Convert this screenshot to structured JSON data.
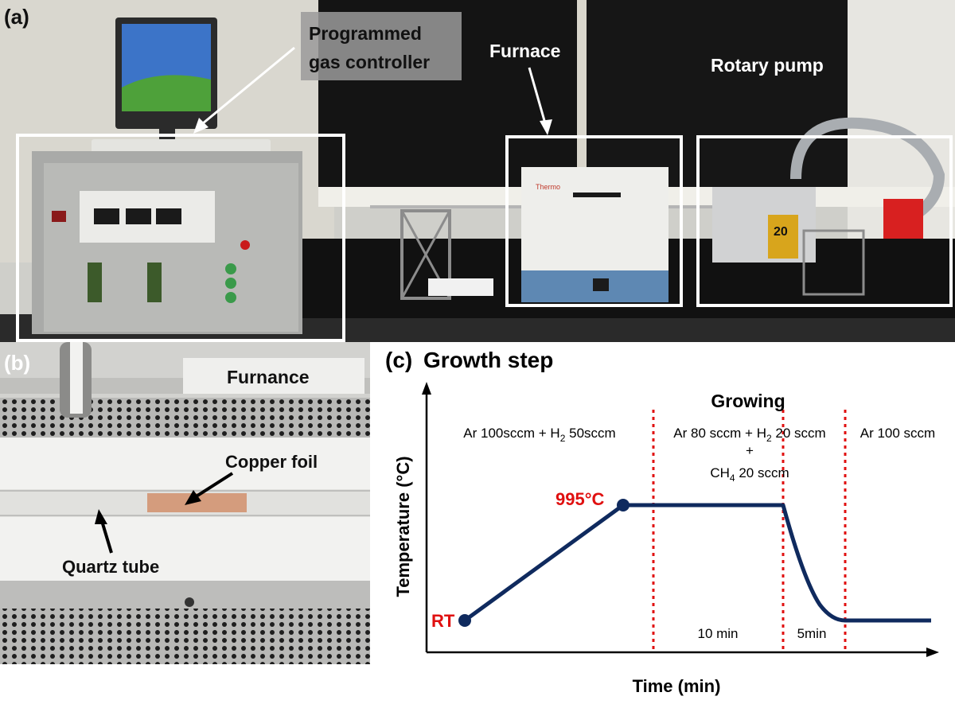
{
  "panel_a": {
    "letter": "(a)",
    "labels": {
      "gas_controller_line1": "Programmed",
      "gas_controller_line2": "gas controller",
      "furnace": "Furnace",
      "rotary_pump": "Rotary pump"
    },
    "furnace_brand": "Thermo",
    "pump_number": "20"
  },
  "panel_b": {
    "letter": "(b)",
    "labels": {
      "furnace": "Furnance",
      "copper_foil": "Copper foil",
      "quartz_tube": "Quartz tube"
    }
  },
  "panel_c": {
    "letter": "(c)",
    "title": "Growth step",
    "growing_label": "Growing",
    "xlabel": "Time (min)",
    "ylabel": "Temperature (°C)",
    "phase1_gas_prefix": "Ar 100sccm + H",
    "phase1_gas_sub": "2",
    "phase1_gas_suffix": " 50sccm",
    "phase2_gas_prefix": "Ar 80 sccm + H",
    "phase2_gas_sub": "2",
    "phase2_gas_suffix": " 20 sccm",
    "phase2_plus": "+",
    "phase2_ch4_prefix": "CH",
    "phase2_ch4_sub": "4",
    "phase2_ch4_suffix": " 20 sccm",
    "phase3_gas": "Ar 100 sccm",
    "duration_growing": "10 min",
    "duration_cooling": "5min",
    "point_peak": "995°C",
    "point_start": "RT",
    "colors": {
      "curve": "#0f2a5e",
      "accent": "#e01010",
      "axis": "#000000"
    }
  }
}
